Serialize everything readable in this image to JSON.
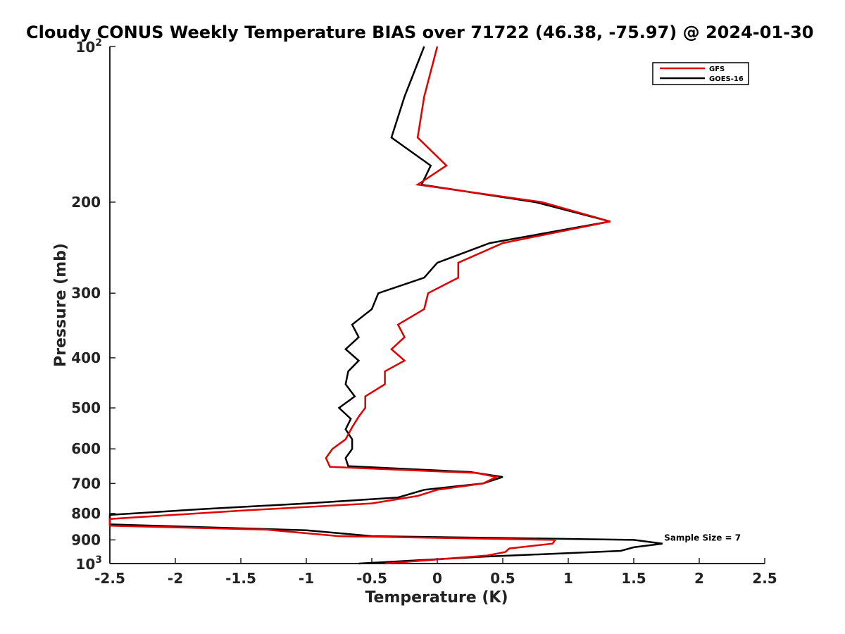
{
  "chart_data": {
    "type": "line",
    "title": "Cloudy CONUS Weekly Temperature BIAS over 71722 (46.38, -75.97) @ 2024-01-30",
    "xlabel": "Temperature (K)",
    "ylabel": "Pressure (mb)",
    "xlim": [
      -2.5,
      2.5
    ],
    "ylim": [
      100,
      1000
    ],
    "y_scale": "log",
    "y_reversed": true,
    "x_ticks": [
      "-2.5",
      "-2",
      "-1.5",
      "-1",
      "-0.5",
      "0",
      "0.5",
      "1",
      "1.5",
      "2",
      "2.5"
    ],
    "y_ticks": [
      {
        "value": 100,
        "base": "10",
        "exp": "2"
      },
      {
        "value": 200,
        "label": "200"
      },
      {
        "value": 300,
        "label": "300"
      },
      {
        "value": 400,
        "label": "400"
      },
      {
        "value": 500,
        "label": "500"
      },
      {
        "value": 600,
        "label": "600"
      },
      {
        "value": 700,
        "label": "700"
      },
      {
        "value": 800,
        "label": "800"
      },
      {
        "value": 900,
        "label": "900"
      },
      {
        "value": 1000,
        "base": "10",
        "exp": "3"
      }
    ],
    "grid": false,
    "legend_position": "top-right",
    "annotation": "Sample Size = 7",
    "annotation_at": {
      "x": 1.7,
      "p": 915
    },
    "series": [
      {
        "name": "GFS",
        "color": "#e00000",
        "points": [
          [
            0.0,
            100
          ],
          [
            -0.1,
            125
          ],
          [
            -0.15,
            150
          ],
          [
            0.07,
            170
          ],
          [
            -0.15,
            185
          ],
          [
            0.8,
            200
          ],
          [
            1.32,
            218
          ],
          [
            0.5,
            240
          ],
          [
            0.16,
            262
          ],
          [
            0.16,
            280
          ],
          [
            -0.07,
            300
          ],
          [
            -0.1,
            322
          ],
          [
            -0.3,
            345
          ],
          [
            -0.25,
            365
          ],
          [
            -0.35,
            385
          ],
          [
            -0.25,
            405
          ],
          [
            -0.4,
            425
          ],
          [
            -0.4,
            450
          ],
          [
            -0.55,
            475
          ],
          [
            -0.55,
            500
          ],
          [
            -0.6,
            520
          ],
          [
            -0.65,
            545
          ],
          [
            -0.7,
            575
          ],
          [
            -0.8,
            600
          ],
          [
            -0.85,
            625
          ],
          [
            -0.82,
            650
          ],
          [
            0.3,
            668
          ],
          [
            0.45,
            680
          ],
          [
            0.35,
            700
          ],
          [
            0.0,
            720
          ],
          [
            -0.15,
            740
          ],
          [
            -0.5,
            765
          ],
          [
            -1.5,
            790
          ],
          [
            -2.5,
            820
          ],
          [
            -2.5,
            845
          ],
          [
            -1.3,
            860
          ],
          [
            -0.75,
            885
          ],
          [
            0.9,
            900
          ],
          [
            0.88,
            915
          ],
          [
            0.55,
            935
          ],
          [
            0.52,
            950
          ],
          [
            0.38,
            965
          ],
          [
            -0.4,
            1000
          ]
        ]
      },
      {
        "name": "GOES-16",
        "color": "#000000",
        "points": [
          [
            -0.1,
            100
          ],
          [
            -0.25,
            125
          ],
          [
            -0.35,
            150
          ],
          [
            -0.05,
            170
          ],
          [
            -0.12,
            185
          ],
          [
            0.75,
            200
          ],
          [
            1.32,
            218
          ],
          [
            0.4,
            240
          ],
          [
            0.0,
            262
          ],
          [
            -0.1,
            280
          ],
          [
            -0.45,
            300
          ],
          [
            -0.5,
            322
          ],
          [
            -0.65,
            345
          ],
          [
            -0.6,
            365
          ],
          [
            -0.7,
            385
          ],
          [
            -0.6,
            405
          ],
          [
            -0.68,
            425
          ],
          [
            -0.7,
            450
          ],
          [
            -0.63,
            475
          ],
          [
            -0.75,
            500
          ],
          [
            -0.66,
            525
          ],
          [
            -0.7,
            550
          ],
          [
            -0.65,
            575
          ],
          [
            -0.65,
            600
          ],
          [
            -0.7,
            625
          ],
          [
            -0.68,
            648
          ],
          [
            0.25,
            665
          ],
          [
            0.5,
            680
          ],
          [
            0.35,
            700
          ],
          [
            -0.1,
            720
          ],
          [
            -0.3,
            745
          ],
          [
            -1.0,
            765
          ],
          [
            -1.8,
            785
          ],
          [
            -2.5,
            805
          ],
          [
            -2.5,
            840
          ],
          [
            -1.0,
            862
          ],
          [
            -0.5,
            885
          ],
          [
            1.5,
            900
          ],
          [
            1.72,
            915
          ],
          [
            1.5,
            930
          ],
          [
            1.4,
            945
          ],
          [
            0.35,
            970
          ],
          [
            -0.6,
            1000
          ]
        ]
      }
    ]
  }
}
